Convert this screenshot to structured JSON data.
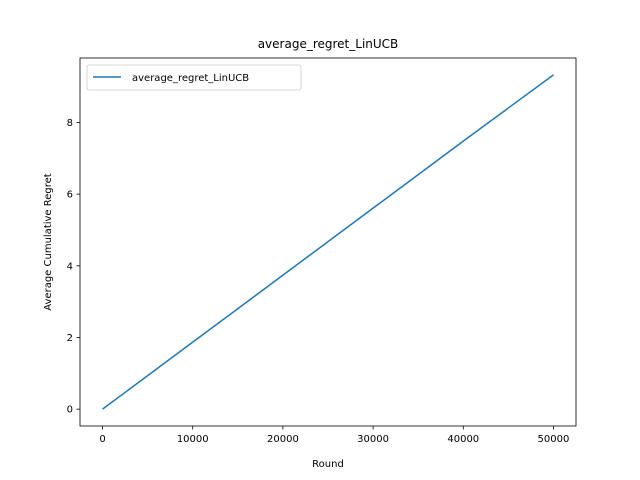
{
  "chart_data": {
    "type": "line",
    "title": "average_regret_LinUCB",
    "xlabel": "Round",
    "ylabel": "Average Cumulative Regret",
    "xlim": [
      -2500,
      52500
    ],
    "ylim": [
      -0.47,
      9.8
    ],
    "xticks": [
      0,
      10000,
      20000,
      30000,
      40000,
      50000
    ],
    "yticks": [
      0,
      2,
      4,
      6,
      8
    ],
    "grid": false,
    "legend_position": "top-left",
    "series": [
      {
        "name": "average_regret_LinUCB",
        "color": "#1f77b4",
        "x": [
          0,
          10000,
          20000,
          30000,
          40000,
          50000
        ],
        "y": [
          0,
          1.87,
          3.74,
          5.61,
          7.48,
          9.33
        ]
      }
    ]
  }
}
